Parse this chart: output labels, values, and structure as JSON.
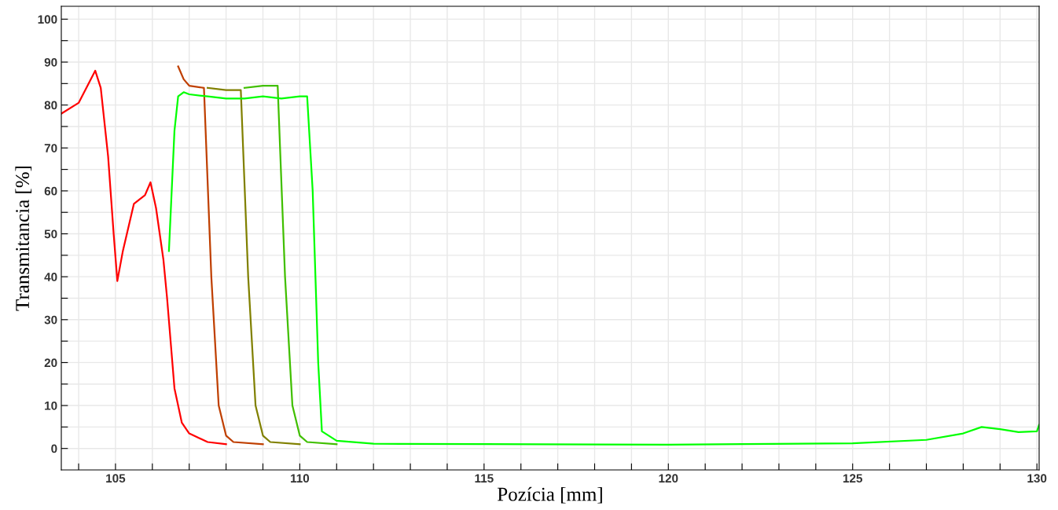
{
  "chart_data": {
    "type": "line",
    "xlabel": "Pozícia [mm]",
    "ylabel": "Transmitancia [%]",
    "xlim": [
      103.53,
      130.06
    ],
    "ylim": [
      -5,
      103
    ],
    "xticks": [
      {
        "value": 104,
        "label": null
      },
      105,
      {
        "value": 106,
        "label": null
      },
      {
        "value": 107,
        "label": null
      },
      {
        "value": 108,
        "label": null
      },
      {
        "value": 109,
        "label": null
      },
      110,
      {
        "value": 111,
        "label": null
      },
      {
        "value": 112,
        "label": null
      },
      {
        "value": 113,
        "label": null
      },
      {
        "value": 114,
        "label": null
      },
      115,
      {
        "value": 116,
        "label": null
      },
      {
        "value": 117,
        "label": null
      },
      {
        "value": 118,
        "label": null
      },
      {
        "value": 119,
        "label": null
      },
      120,
      {
        "value": 121,
        "label": null
      },
      {
        "value": 122,
        "label": null
      },
      {
        "value": 123,
        "label": null
      },
      {
        "value": 124,
        "label": null
      },
      125,
      {
        "value": 126,
        "label": null
      },
      {
        "value": 127,
        "label": null
      },
      {
        "value": 128,
        "label": null
      },
      {
        "value": 129,
        "label": null
      },
      130
    ],
    "yticks": [
      0,
      {
        "value": 5,
        "label": null
      },
      10,
      {
        "value": 15,
        "label": null
      },
      20,
      {
        "value": 25,
        "label": null
      },
      30,
      {
        "value": 35,
        "label": null
      },
      40,
      {
        "value": 45,
        "label": null
      },
      50,
      {
        "value": 55,
        "label": null
      },
      60,
      {
        "value": 65,
        "label": null
      },
      70,
      {
        "value": 75,
        "label": null
      },
      80,
      {
        "value": 85,
        "label": null
      },
      90,
      {
        "value": 95,
        "label": null
      },
      100
    ],
    "grid": true,
    "marker": "none",
    "line_style": "solid",
    "series": [
      {
        "color": "#ff0000",
        "x": [
          103.53,
          104,
          104.45,
          104.6,
          104.8,
          104.95,
          105.05,
          105.2,
          105.5,
          105.8,
          105.95,
          106.1,
          106.3,
          106.4,
          106.6,
          106.8,
          107,
          107.5,
          108
        ],
        "values": [
          78,
          80.5,
          88,
          84,
          68,
          50,
          39,
          46,
          57,
          59,
          62,
          56,
          44,
          35,
          14,
          6,
          3.5,
          1.5,
          1
        ]
      },
      {
        "color": "#bf3f00",
        "x": [
          106.7,
          106.85,
          107,
          107.4,
          107.6,
          107.8,
          108,
          108.2,
          109
        ],
        "values": [
          89,
          86,
          84.5,
          84,
          40,
          10,
          3,
          1.5,
          1
        ]
      },
      {
        "color": "#808000",
        "x": [
          107.5,
          108,
          108.4,
          108.6,
          108.8,
          109,
          109.2,
          110
        ],
        "values": [
          84,
          83.5,
          83.5,
          40,
          10,
          3,
          1.5,
          1
        ]
      },
      {
        "color": "#40bf00",
        "x": [
          108.5,
          109,
          109.4,
          109.6,
          109.8,
          110,
          110.2,
          111
        ],
        "values": [
          84,
          84.5,
          84.5,
          40,
          10,
          3,
          1.5,
          1
        ]
      },
      {
        "color": "#00ff00",
        "x": [
          106.45,
          106.6,
          106.7,
          106.85,
          107,
          107.5,
          108,
          108.5,
          109,
          109.5,
          110,
          110.2,
          110.35,
          110.5,
          110.6,
          111,
          112,
          115,
          120,
          122,
          125,
          127,
          128,
          128.5,
          129,
          129.5,
          130,
          130.06
        ],
        "values": [
          46,
          74,
          82,
          83,
          82.5,
          82,
          81.5,
          81.5,
          82,
          81.5,
          82,
          82,
          60,
          20,
          4,
          1.8,
          1.1,
          1,
          0.9,
          1,
          1.2,
          2,
          3.5,
          5,
          4.5,
          3.8,
          4,
          5.5
        ]
      }
    ]
  }
}
